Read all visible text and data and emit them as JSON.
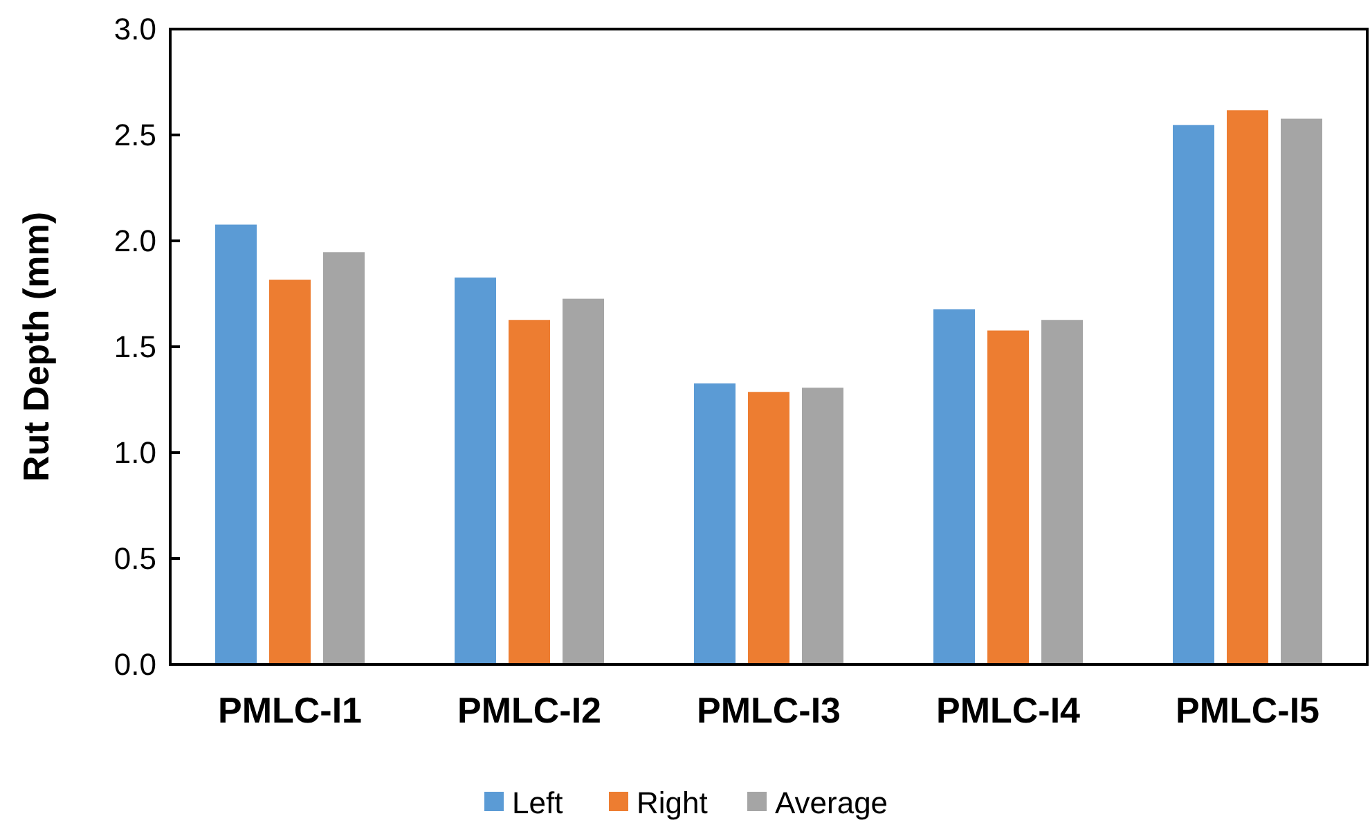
{
  "chart_data": {
    "type": "bar",
    "ylabel": "Rut Depth (mm)",
    "categories": [
      "PMLC-I1",
      "PMLC-I2",
      "PMLC-I3",
      "PMLC-I4",
      "PMLC-I5"
    ],
    "series": [
      {
        "name": "Left",
        "color": "#5b9bd5",
        "values": [
          2.08,
          1.83,
          1.33,
          1.68,
          2.55
        ]
      },
      {
        "name": "Right",
        "color": "#ed7d31",
        "values": [
          1.82,
          1.63,
          1.29,
          1.58,
          2.62
        ]
      },
      {
        "name": "Average",
        "color": "#a5a5a5",
        "values": [
          1.95,
          1.73,
          1.31,
          1.63,
          2.58
        ]
      }
    ],
    "ylim": [
      0,
      3.0
    ],
    "yticks": [
      {
        "value": 0,
        "label": "0.0"
      },
      {
        "value": 0.5,
        "label": "0.5"
      },
      {
        "value": 1,
        "label": "1.0"
      },
      {
        "value": 1.5,
        "label": "1.5"
      },
      {
        "value": 2,
        "label": "2.0"
      },
      {
        "value": 2.5,
        "label": "2.5"
      },
      {
        "value": 3,
        "label": "3.0"
      }
    ],
    "grid": false,
    "legend": "bottom"
  }
}
